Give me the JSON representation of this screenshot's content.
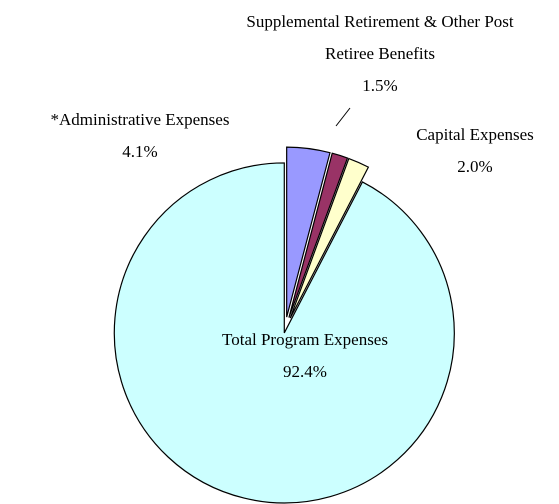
{
  "chart_data": {
    "type": "pie",
    "categories": [
      "*Administrative Expenses",
      "Supplemental Retirement & Other Post Retiree Benefits",
      "Capital Expenses",
      "Total Program Expenses"
    ],
    "values": [
      4.1,
      1.5,
      2.0,
      92.4
    ],
    "value_labels": [
      "4.1%",
      "1.5%",
      "2.0%",
      "92.4%"
    ],
    "colors": [
      "#9999ff",
      "#993366",
      "#ffffcc",
      "#ccffff"
    ]
  }
}
